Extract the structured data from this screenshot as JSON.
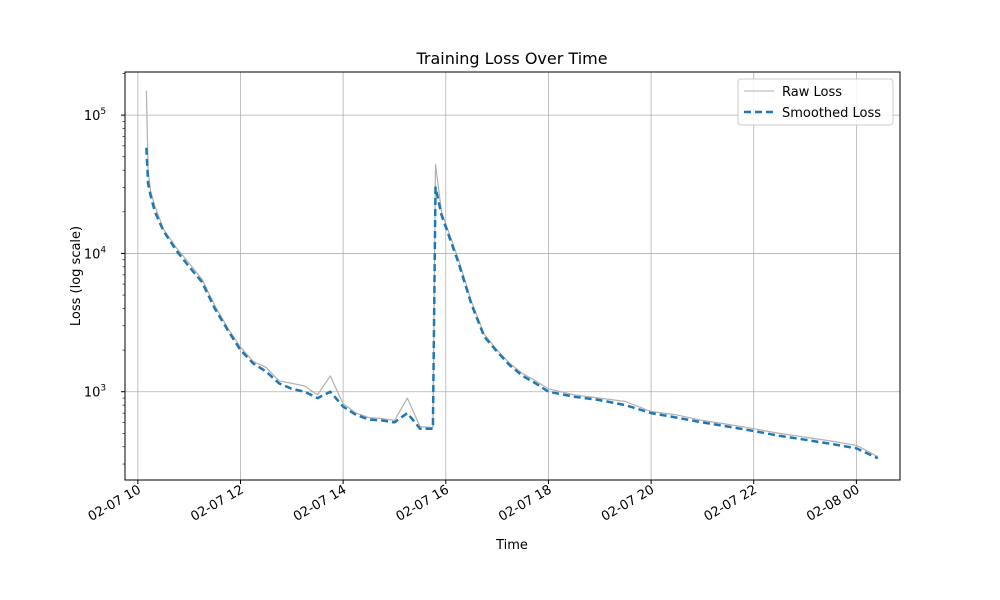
{
  "chart_data": {
    "type": "line",
    "title": "Training Loss Over Time",
    "xlabel": "Time",
    "ylabel": "Loss (log scale)",
    "yscale": "log",
    "grid": true,
    "legend_position": "top-right",
    "xlim": [
      "2025-02-07 09:45",
      "2025-02-08 00:51"
    ],
    "ylim": [
      230,
      205000
    ],
    "x_tick_labels": [
      "02-07 10",
      "02-07 12",
      "02-07 14",
      "02-07 16",
      "02-07 18",
      "02-07 20",
      "02-07 22",
      "02-08 00"
    ],
    "x_tick_values": [
      "2025-02-07 10:00",
      "2025-02-07 12:00",
      "2025-02-07 14:00",
      "2025-02-07 16:00",
      "2025-02-07 18:00",
      "2025-02-07 20:00",
      "2025-02-07 22:00",
      "2025-02-08 00:00"
    ],
    "y_ticks": [
      {
        "value": 1000,
        "base": "10",
        "exponent": "3"
      },
      {
        "value": 10000,
        "base": "10",
        "exponent": "4"
      },
      {
        "value": 100000,
        "base": "10",
        "exponent": "5"
      }
    ],
    "series": [
      {
        "name": "Raw Loss",
        "color": "#b0b0b0",
        "style": "solid",
        "points": [
          [
            "2025-02-07 10:10",
            150000
          ],
          [
            "2025-02-07 10:12",
            40000
          ],
          [
            "2025-02-07 10:15",
            28000
          ],
          [
            "2025-02-07 10:20",
            22000
          ],
          [
            "2025-02-07 10:30",
            15000
          ],
          [
            "2025-02-07 10:45",
            11000
          ],
          [
            "2025-02-07 11:00",
            8500
          ],
          [
            "2025-02-07 11:15",
            6500
          ],
          [
            "2025-02-07 11:30",
            4200
          ],
          [
            "2025-02-07 11:45",
            2900
          ],
          [
            "2025-02-07 12:00",
            2100
          ],
          [
            "2025-02-07 12:15",
            1650
          ],
          [
            "2025-02-07 12:30",
            1500
          ],
          [
            "2025-02-07 12:45",
            1200
          ],
          [
            "2025-02-07 13:00",
            1150
          ],
          [
            "2025-02-07 13:15",
            1100
          ],
          [
            "2025-02-07 13:30",
            950
          ],
          [
            "2025-02-07 13:45",
            1300
          ],
          [
            "2025-02-07 14:00",
            820
          ],
          [
            "2025-02-07 14:15",
            700
          ],
          [
            "2025-02-07 14:30",
            650
          ],
          [
            "2025-02-07 14:45",
            640
          ],
          [
            "2025-02-07 15:00",
            620
          ],
          [
            "2025-02-07 15:15",
            900
          ],
          [
            "2025-02-07 15:30",
            560
          ],
          [
            "2025-02-07 15:45",
            550
          ],
          [
            "2025-02-07 15:48",
            44000
          ],
          [
            "2025-02-07 15:55",
            20000
          ],
          [
            "2025-02-07 16:15",
            9000
          ],
          [
            "2025-02-07 16:30",
            4500
          ],
          [
            "2025-02-07 16:45",
            2600
          ],
          [
            "2025-02-07 17:00",
            2000
          ],
          [
            "2025-02-07 17:15",
            1600
          ],
          [
            "2025-02-07 17:30",
            1350
          ],
          [
            "2025-02-07 17:45",
            1200
          ],
          [
            "2025-02-07 18:00",
            1050
          ],
          [
            "2025-02-07 18:30",
            950
          ],
          [
            "2025-02-07 19:00",
            900
          ],
          [
            "2025-02-07 19:30",
            850
          ],
          [
            "2025-02-07 20:00",
            720
          ],
          [
            "2025-02-07 20:30",
            680
          ],
          [
            "2025-02-07 21:00",
            620
          ],
          [
            "2025-02-07 21:30",
            580
          ],
          [
            "2025-02-07 22:00",
            540
          ],
          [
            "2025-02-07 22:30",
            500
          ],
          [
            "2025-02-07 23:00",
            470
          ],
          [
            "2025-02-07 23:30",
            440
          ],
          [
            "2025-02-08 00:00",
            410
          ],
          [
            "2025-02-08 00:25",
            340
          ]
        ]
      },
      {
        "name": "Smoothed Loss",
        "color": "#1f77b4",
        "style": "dashed",
        "points": [
          [
            "2025-02-07 10:10",
            58000
          ],
          [
            "2025-02-07 10:12",
            32000
          ],
          [
            "2025-02-07 10:15",
            26000
          ],
          [
            "2025-02-07 10:20",
            20000
          ],
          [
            "2025-02-07 10:30",
            14500
          ],
          [
            "2025-02-07 10:45",
            10500
          ],
          [
            "2025-02-07 11:00",
            8000
          ],
          [
            "2025-02-07 11:15",
            6200
          ],
          [
            "2025-02-07 11:30",
            4000
          ],
          [
            "2025-02-07 11:45",
            2800
          ],
          [
            "2025-02-07 12:00",
            2000
          ],
          [
            "2025-02-07 12:15",
            1600
          ],
          [
            "2025-02-07 12:30",
            1400
          ],
          [
            "2025-02-07 12:45",
            1150
          ],
          [
            "2025-02-07 13:00",
            1050
          ],
          [
            "2025-02-07 13:15",
            1000
          ],
          [
            "2025-02-07 13:30",
            900
          ],
          [
            "2025-02-07 13:45",
            1000
          ],
          [
            "2025-02-07 14:00",
            780
          ],
          [
            "2025-02-07 14:15",
            680
          ],
          [
            "2025-02-07 14:30",
            630
          ],
          [
            "2025-02-07 14:45",
            620
          ],
          [
            "2025-02-07 15:00",
            600
          ],
          [
            "2025-02-07 15:15",
            700
          ],
          [
            "2025-02-07 15:30",
            540
          ],
          [
            "2025-02-07 15:45",
            540
          ],
          [
            "2025-02-07 15:48",
            30000
          ],
          [
            "2025-02-07 15:55",
            19000
          ],
          [
            "2025-02-07 16:15",
            8500
          ],
          [
            "2025-02-07 16:30",
            4300
          ],
          [
            "2025-02-07 16:45",
            2500
          ],
          [
            "2025-02-07 17:00",
            1950
          ],
          [
            "2025-02-07 17:15",
            1550
          ],
          [
            "2025-02-07 17:30",
            1300
          ],
          [
            "2025-02-07 17:45",
            1150
          ],
          [
            "2025-02-07 18:00",
            1000
          ],
          [
            "2025-02-07 18:30",
            920
          ],
          [
            "2025-02-07 19:00",
            870
          ],
          [
            "2025-02-07 19:30",
            800
          ],
          [
            "2025-02-07 20:00",
            700
          ],
          [
            "2025-02-07 20:30",
            650
          ],
          [
            "2025-02-07 21:00",
            600
          ],
          [
            "2025-02-07 21:30",
            560
          ],
          [
            "2025-02-07 22:00",
            520
          ],
          [
            "2025-02-07 22:30",
            480
          ],
          [
            "2025-02-07 23:00",
            450
          ],
          [
            "2025-02-07 23:30",
            420
          ],
          [
            "2025-02-08 00:00",
            390
          ],
          [
            "2025-02-08 00:25",
            330
          ]
        ]
      }
    ]
  }
}
